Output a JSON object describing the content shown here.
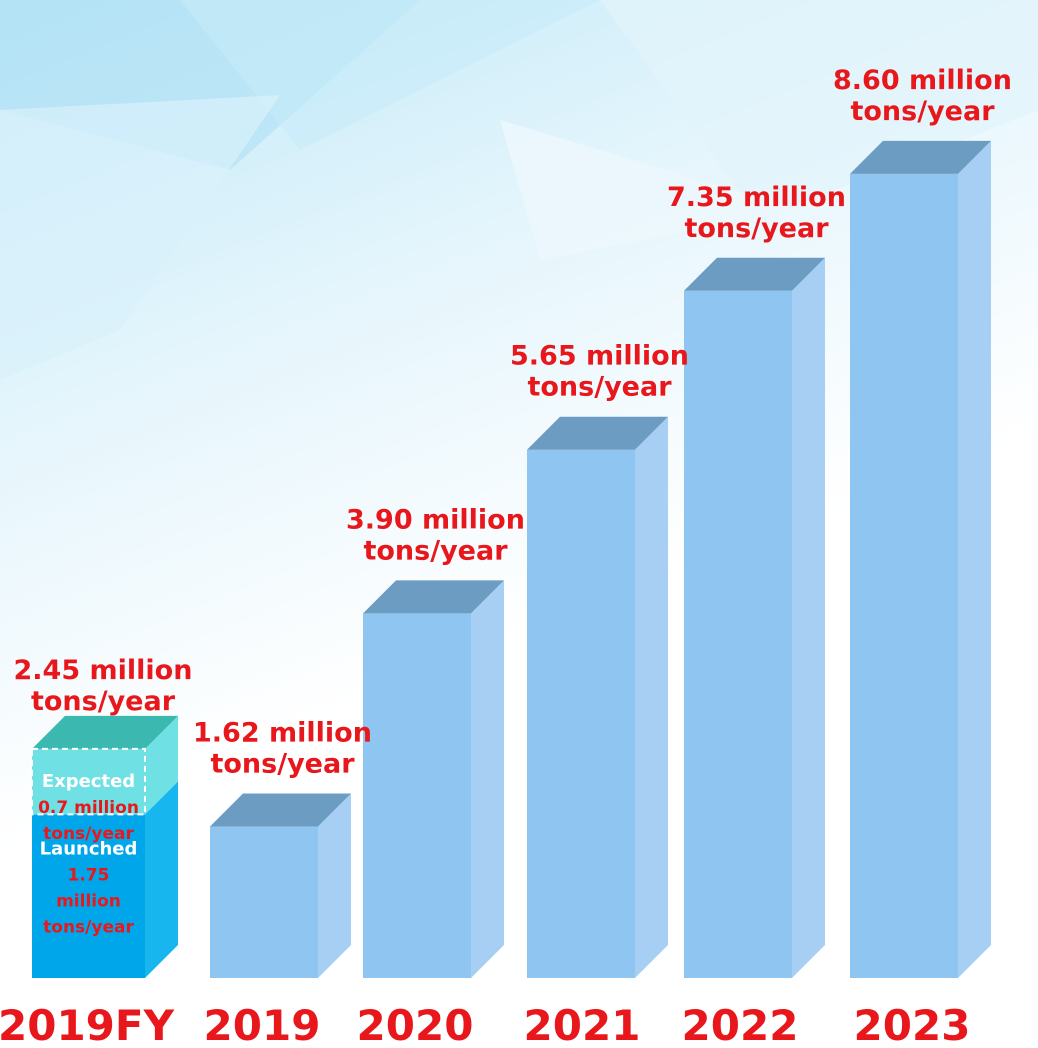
{
  "chart_data": {
    "type": "bar",
    "unit": "million tons/year",
    "categories": [
      "2019FY",
      "2019",
      "2020",
      "2021",
      "2022",
      "2023"
    ],
    "values": [
      2.45,
      1.62,
      3.9,
      5.65,
      7.35,
      8.6
    ],
    "value_labels": [
      [
        "2.45 million",
        "tons/year"
      ],
      [
        "1.62 million",
        "tons/year"
      ],
      [
        "3.90 million",
        "tons/year"
      ],
      [
        "5.65 million",
        "tons/year"
      ],
      [
        "7.35 million",
        "tons/year"
      ],
      [
        "8.60 million",
        "tons/year"
      ]
    ],
    "stacked_first_bar": {
      "launched": {
        "label": "Launched",
        "value": 1.75,
        "lines": [
          "1.75",
          "million",
          "tons/year"
        ]
      },
      "expected": {
        "label": "Expected",
        "value": 0.7,
        "lines": [
          "0.7 million",
          "tons/year"
        ]
      }
    },
    "colors": {
      "bar_front": "#8ec5f1",
      "bar_side": "#a6cff3",
      "bar_top": "#6d9cc3",
      "first_bar_front": "#00a6ea",
      "first_bar_side": "#17b6ee",
      "expected_front": "#6fe0e4",
      "expected_top": "#3bb8b0",
      "label": "#e8171b"
    }
  }
}
